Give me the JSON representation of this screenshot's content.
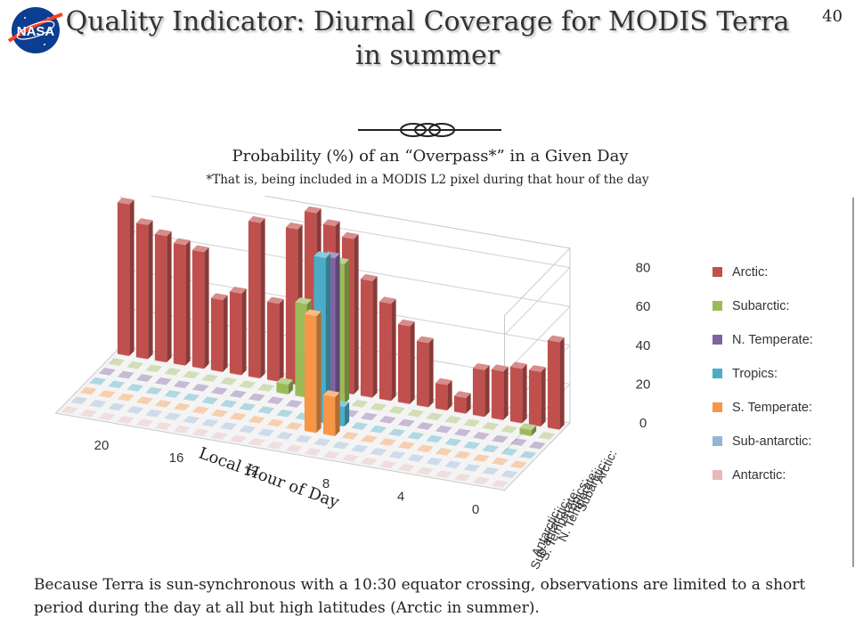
{
  "slide": {
    "logo_text": "NASA",
    "page_number": "40",
    "title": "Quality Indicator: Diurnal Coverage for MODIS Terra in summer",
    "bottom_text": "Because Terra is sun-synchronous with a 10:30 equator crossing, observations are limited to a short period during the day at all but high latitudes (Arctic in summer)."
  },
  "chart_data": {
    "type": "bar",
    "subtype": "3d-column",
    "title": "Probability (%) of an “Overpass*” in a Given Day",
    "subtitle": "*That is, being included in a MODIS L2 pixel during that hour of the day",
    "xlabel": "Local Hour of Day",
    "x_tick_labels": [
      "0",
      "4",
      "8",
      "12",
      "16",
      "20"
    ],
    "hours": [
      0,
      1,
      2,
      3,
      4,
      5,
      6,
      7,
      8,
      9,
      10,
      11,
      12,
      13,
      14,
      15,
      16,
      17,
      18,
      19,
      20,
      21,
      22,
      23
    ],
    "z_ticks": [
      0,
      20,
      40,
      60,
      80
    ],
    "zlim": [
      0,
      90
    ],
    "legend_position": "right",
    "series": [
      {
        "name": "Arctic:",
        "color": "#c0504d",
        "values": [
          45,
          28,
          28,
          25,
          24,
          8,
          13,
          33,
          40,
          50,
          60,
          80,
          85,
          90,
          80,
          40,
          80,
          42,
          37,
          60,
          62,
          65,
          69,
          78
        ]
      },
      {
        "name": "Subarctic:",
        "color": "#9bbb59",
        "values": [
          0,
          3,
          0,
          0,
          0,
          0,
          0,
          0,
          0,
          0,
          0,
          72,
          55,
          48,
          5,
          0,
          0,
          0,
          0,
          0,
          0,
          0,
          0,
          0
        ]
      },
      {
        "name": "N. Temperate:",
        "color": "#8064a2",
        "values": [
          0,
          0,
          0,
          0,
          0,
          0,
          0,
          0,
          0,
          0,
          0,
          80,
          30,
          0,
          0,
          0,
          0,
          0,
          0,
          0,
          0,
          0,
          0,
          0
        ]
      },
      {
        "name": "Tropics:",
        "color": "#4bacc6",
        "values": [
          0,
          0,
          0,
          0,
          0,
          0,
          0,
          0,
          0,
          0,
          10,
          85,
          0,
          0,
          0,
          0,
          0,
          0,
          0,
          0,
          0,
          0,
          0,
          0
        ]
      },
      {
        "name": "S. Temperate:",
        "color": "#f79646",
        "values": [
          0,
          0,
          0,
          0,
          0,
          0,
          0,
          0,
          0,
          0,
          20,
          60,
          0,
          0,
          0,
          0,
          0,
          0,
          0,
          0,
          0,
          0,
          0,
          0
        ]
      },
      {
        "name": "Sub-antarctic:",
        "color": "#95b3d7",
        "values": [
          0,
          0,
          0,
          0,
          0,
          0,
          0,
          0,
          0,
          0,
          0,
          0,
          0,
          0,
          0,
          0,
          0,
          0,
          0,
          0,
          0,
          0,
          0,
          0
        ]
      },
      {
        "name": "Antarctic:",
        "color": "#e6b9b8",
        "values": [
          0,
          0,
          0,
          0,
          0,
          0,
          0,
          0,
          0,
          0,
          0,
          0,
          0,
          0,
          0,
          0,
          0,
          0,
          0,
          0,
          0,
          0,
          0,
          0
        ]
      }
    ]
  }
}
